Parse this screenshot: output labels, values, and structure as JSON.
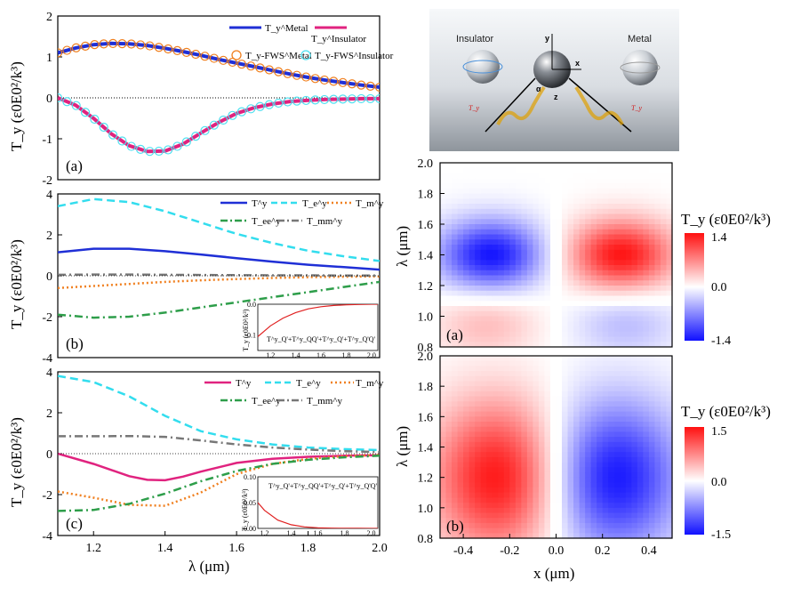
{
  "chart_data": [
    {
      "id": "a",
      "type": "line",
      "panel_label": "(a)",
      "ylabel": "T_y (ε0E0²/k³)",
      "xlim": [
        1.1,
        2.0
      ],
      "ylim": [
        -2,
        2
      ],
      "yticks": [
        "-2",
        "-1",
        "0",
        "1",
        "2"
      ],
      "legend": [
        "T_y^Metal",
        "T_y^Insulator",
        "T_y-FWS^Metal",
        "T_y-FWS^Insulator"
      ],
      "colors": {
        "metal": "#1f2fd6",
        "insulator": "#e0237f",
        "metal_fws": "#f07f1e",
        "insulator_fws": "#4fe0f0"
      },
      "series": [
        {
          "name": "T_y^Metal",
          "x": [
            1.1,
            1.15,
            1.2,
            1.25,
            1.3,
            1.35,
            1.4,
            1.45,
            1.5,
            1.55,
            1.6,
            1.65,
            1.7,
            1.75,
            1.8,
            1.85,
            1.9,
            1.95,
            2.0
          ],
          "y": [
            1.1,
            1.22,
            1.3,
            1.33,
            1.32,
            1.28,
            1.21,
            1.13,
            1.04,
            0.94,
            0.85,
            0.76,
            0.67,
            0.58,
            0.5,
            0.43,
            0.37,
            0.31,
            0.26
          ]
        },
        {
          "name": "T_y^Insulator",
          "x": [
            1.1,
            1.15,
            1.2,
            1.25,
            1.3,
            1.35,
            1.4,
            1.45,
            1.5,
            1.55,
            1.6,
            1.65,
            1.7,
            1.75,
            1.8,
            1.85,
            1.9,
            1.95,
            2.0
          ],
          "y": [
            0.0,
            -0.18,
            -0.5,
            -0.88,
            -1.17,
            -1.31,
            -1.3,
            -1.13,
            -0.86,
            -0.6,
            -0.38,
            -0.24,
            -0.15,
            -0.09,
            -0.06,
            -0.04,
            -0.03,
            -0.02,
            -0.02
          ]
        }
      ]
    },
    {
      "id": "b",
      "type": "line",
      "panel_label": "(b)",
      "ylabel": "T_y (ε0E0²/k³)",
      "xlim": [
        1.1,
        2.0
      ],
      "ylim": [
        -4,
        4
      ],
      "yticks": [
        "-4",
        "-2",
        "0",
        "2",
        "4"
      ],
      "legend": [
        "T^y",
        "T_e^y",
        "T_m^y",
        "T_ee^y",
        "T_mm^y"
      ],
      "series": [
        {
          "name": "T^y",
          "x": [
            1.1,
            1.2,
            1.3,
            1.4,
            1.5,
            1.6,
            1.7,
            1.8,
            1.9,
            2.0
          ],
          "y": [
            1.15,
            1.32,
            1.32,
            1.2,
            1.04,
            0.86,
            0.69,
            0.54,
            0.42,
            0.3
          ]
        },
        {
          "name": "T_e^y",
          "x": [
            1.1,
            1.2,
            1.3,
            1.4,
            1.5,
            1.6,
            1.7,
            1.8,
            1.9,
            2.0
          ],
          "y": [
            3.4,
            3.75,
            3.6,
            3.15,
            2.6,
            2.05,
            1.6,
            1.22,
            0.95,
            0.72
          ]
        },
        {
          "name": "T_m^y",
          "x": [
            1.1,
            1.2,
            1.3,
            1.4,
            1.5,
            1.6,
            1.7,
            1.8,
            1.9,
            2.0
          ],
          "y": [
            -0.6,
            -0.5,
            -0.4,
            -0.3,
            -0.22,
            -0.16,
            -0.11,
            -0.07,
            -0.05,
            -0.03
          ]
        },
        {
          "name": "T_ee^y",
          "x": [
            1.1,
            1.2,
            1.3,
            1.4,
            1.5,
            1.6,
            1.7,
            1.8,
            1.9,
            2.0
          ],
          "y": [
            -1.9,
            -2.05,
            -2.0,
            -1.8,
            -1.55,
            -1.3,
            -1.05,
            -0.8,
            -0.55,
            -0.3
          ]
        },
        {
          "name": "T_mm^y",
          "x": [
            1.1,
            1.2,
            1.3,
            1.4,
            1.5,
            1.6,
            1.7,
            1.8,
            1.9,
            2.0
          ],
          "y": [
            0.05,
            0.06,
            0.06,
            0.05,
            0.04,
            0.03,
            0.02,
            0.02,
            0.01,
            0.01
          ]
        }
      ],
      "inset": {
        "xlim": [
          1.1,
          2.05
        ],
        "ylim": [
          -0.15,
          0.0
        ],
        "xticks": [
          "1.2",
          "1.4",
          "1.6",
          "1.8",
          "2.0"
        ],
        "yticks": [
          "0.0",
          "-0.1"
        ],
        "ylabel": "T_y (ε0E0²/k³)",
        "legend": "T^y_Q'+T^y_QQ'+T^y_Q'+T^y_Q'Q'",
        "x": [
          1.1,
          1.2,
          1.3,
          1.4,
          1.5,
          1.6,
          1.7,
          1.8,
          1.9,
          2.0,
          2.05
        ],
        "y": [
          -0.105,
          -0.07,
          -0.045,
          -0.027,
          -0.015,
          -0.008,
          -0.004,
          -0.002,
          -0.001,
          0.0,
          0.0
        ]
      }
    },
    {
      "id": "c",
      "type": "line",
      "panel_label": "(c)",
      "ylabel": "T_y (ε0E0²/k³)",
      "xlabel": "λ (μm)",
      "xlim": [
        1.1,
        2.0
      ],
      "ylim": [
        -4,
        4
      ],
      "yticks": [
        "-4",
        "-2",
        "0",
        "2",
        "4"
      ],
      "xticks": [
        "1.2",
        "1.4",
        "1.6",
        "1.8",
        "2.0"
      ],
      "legend": [
        "T^y",
        "T_e^y",
        "T_m^y",
        "T_ee^y",
        "T_mm^y"
      ],
      "series": [
        {
          "name": "T^y",
          "x": [
            1.1,
            1.2,
            1.3,
            1.35,
            1.4,
            1.45,
            1.5,
            1.6,
            1.7,
            1.8,
            1.9,
            2.0
          ],
          "y": [
            0.0,
            -0.5,
            -1.1,
            -1.28,
            -1.3,
            -1.12,
            -0.88,
            -0.45,
            -0.25,
            -0.15,
            -0.1,
            -0.08
          ]
        },
        {
          "name": "T_e^y",
          "x": [
            1.1,
            1.2,
            1.3,
            1.4,
            1.5,
            1.6,
            1.7,
            1.8,
            1.9,
            2.0
          ],
          "y": [
            3.8,
            3.5,
            2.8,
            1.85,
            1.1,
            0.7,
            0.45,
            0.3,
            0.22,
            0.18
          ]
        },
        {
          "name": "T_m^y",
          "x": [
            1.1,
            1.2,
            1.3,
            1.4,
            1.5,
            1.6,
            1.7,
            1.8,
            1.9,
            2.0
          ],
          "y": [
            -1.85,
            -2.15,
            -2.5,
            -2.55,
            -1.9,
            -1.0,
            -0.5,
            -0.25,
            -0.12,
            -0.06
          ]
        },
        {
          "name": "T_ee^y",
          "x": [
            1.1,
            1.2,
            1.3,
            1.4,
            1.5,
            1.6,
            1.7,
            1.8,
            1.9,
            2.0
          ],
          "y": [
            -2.8,
            -2.75,
            -2.45,
            -1.95,
            -1.35,
            -0.85,
            -0.5,
            -0.3,
            -0.18,
            -0.1
          ]
        },
        {
          "name": "T_mm^y",
          "x": [
            1.1,
            1.2,
            1.3,
            1.4,
            1.5,
            1.6,
            1.7,
            1.8,
            1.9,
            2.0
          ],
          "y": [
            0.85,
            0.85,
            0.86,
            0.82,
            0.65,
            0.45,
            0.3,
            0.2,
            0.12,
            0.08
          ]
        }
      ],
      "inset": {
        "xlim": [
          1.15,
          2.05
        ],
        "ylim": [
          0.0,
          0.1
        ],
        "xticks": [
          "1.2",
          "1.4",
          "1.6",
          "1.8",
          "2.0"
        ],
        "yticks": [
          "0.10",
          "0.05",
          "0.00"
        ],
        "ylabel": "T_y (ε0E0²/k³)",
        "legend": "T^y_Q'+T^y_QQ'+T^y_Q'+T^y_Q'Q'",
        "x": [
          1.15,
          1.2,
          1.3,
          1.4,
          1.5,
          1.6,
          1.7,
          1.8,
          1.9,
          2.0,
          2.05
        ],
        "y": [
          0.05,
          0.035,
          0.016,
          0.007,
          0.003,
          0.0012,
          0.0005,
          0.0002,
          0.0001,
          0.0,
          0.0
        ]
      }
    },
    {
      "id": "heat_a",
      "type": "heatmap",
      "panel_label": "(a)",
      "ylabel": "λ (μm)",
      "xlim": [
        -0.5,
        0.5
      ],
      "ylim": [
        0.8,
        2.0
      ],
      "yticks": [
        "0.8",
        "1.0",
        "1.2",
        "1.4",
        "1.6",
        "1.8",
        "2.0"
      ],
      "colorbar": {
        "label": "T_y (ε0E0²/k³)",
        "ticks": [
          "1.4",
          "0.0",
          "-1.4"
        ]
      },
      "description_blobs": [
        {
          "sign": "neg",
          "x": -0.28,
          "y": 1.4,
          "amp": 1.4
        },
        {
          "sign": "pos",
          "x": 0.28,
          "y": 1.4,
          "amp": 1.4
        },
        {
          "sign": "pos",
          "x": -0.3,
          "y": 0.95,
          "amp": 0.4
        },
        {
          "sign": "neg",
          "x": 0.3,
          "y": 0.95,
          "amp": 0.4
        }
      ]
    },
    {
      "id": "heat_b",
      "type": "heatmap",
      "panel_label": "(b)",
      "ylabel": "λ (μm)",
      "xlabel": "x (μm)",
      "xlim": [
        -0.5,
        0.5
      ],
      "ylim": [
        0.8,
        2.0
      ],
      "xticks": [
        "-0.4",
        "-0.2",
        "0.0",
        "0.2",
        "0.4"
      ],
      "yticks": [
        "0.8",
        "1.0",
        "1.2",
        "1.4",
        "1.6",
        "1.8",
        "2.0"
      ],
      "colorbar": {
        "label": "T_y (ε0E0²/k³)",
        "ticks": [
          "1.5",
          "0.0",
          "-1.5"
        ]
      },
      "description_blobs": [
        {
          "sign": "pos",
          "x": -0.25,
          "y": 1.2,
          "amp": 1.5
        },
        {
          "sign": "neg",
          "x": 0.25,
          "y": 1.2,
          "amp": 1.5
        }
      ]
    }
  ],
  "schematic": {
    "left_label": "Insulator",
    "right_label": "Metal",
    "axes": [
      "y",
      "x",
      "z"
    ],
    "angle": "α",
    "torque": "T_y"
  }
}
